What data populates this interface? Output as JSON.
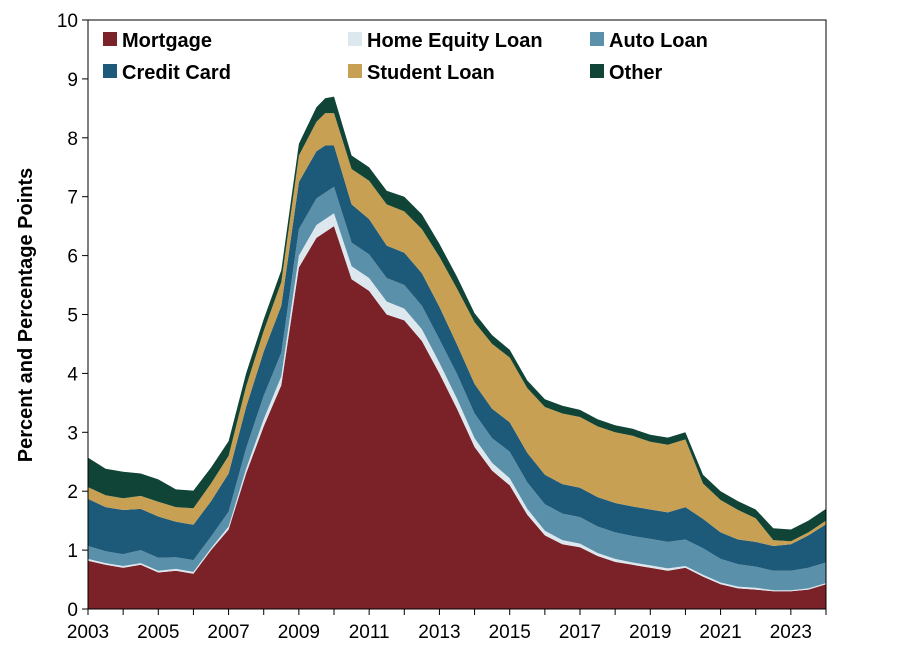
{
  "chart_data": {
    "type": "area",
    "stacked": true,
    "title": "",
    "xlabel": "",
    "ylabel": "Percent and Percentage Points",
    "xlim": [
      2003,
      2024
    ],
    "ylim": [
      0,
      10
    ],
    "x_ticks": [
      "2003",
      "2005",
      "2007",
      "2009",
      "2011",
      "2013",
      "2015",
      "2017",
      "2019",
      "2021",
      "2023"
    ],
    "y_ticks": [
      "0",
      "1",
      "2",
      "3",
      "4",
      "5",
      "6",
      "7",
      "8",
      "9",
      "10"
    ],
    "grid": false,
    "legend_position": "top",
    "x": [
      2003.0,
      2003.5,
      2004.0,
      2004.5,
      2005.0,
      2005.5,
      2006.0,
      2006.5,
      2007.0,
      2007.5,
      2008.0,
      2008.5,
      2009.0,
      2009.5,
      2009.75,
      2010.0,
      2010.5,
      2011.0,
      2011.5,
      2012.0,
      2012.5,
      2013.0,
      2013.5,
      2014.0,
      2014.5,
      2015.0,
      2015.5,
      2016.0,
      2016.5,
      2017.0,
      2017.5,
      2018.0,
      2018.5,
      2019.0,
      2019.5,
      2020.0,
      2020.5,
      2021.0,
      2021.5,
      2022.0,
      2022.5,
      2023.0,
      2023.5,
      2024.0
    ],
    "series": [
      {
        "name": "Mortgage",
        "color": "#7b2229",
        "values": [
          0.82,
          0.75,
          0.7,
          0.75,
          0.62,
          0.65,
          0.6,
          1.0,
          1.35,
          2.3,
          3.1,
          3.8,
          5.8,
          6.3,
          6.4,
          6.5,
          5.6,
          5.4,
          5.0,
          4.9,
          4.55,
          4.0,
          3.4,
          2.75,
          2.35,
          2.1,
          1.6,
          1.25,
          1.1,
          1.05,
          0.9,
          0.8,
          0.75,
          0.7,
          0.65,
          0.7,
          0.55,
          0.42,
          0.35,
          0.33,
          0.3,
          0.3,
          0.33,
          0.42
        ]
      },
      {
        "name": "Home Equity Loan",
        "color": "#dde8ee",
        "values": [
          0.03,
          0.03,
          0.03,
          0.03,
          0.03,
          0.03,
          0.03,
          0.03,
          0.05,
          0.08,
          0.12,
          0.15,
          0.2,
          0.22,
          0.22,
          0.22,
          0.22,
          0.22,
          0.22,
          0.2,
          0.2,
          0.18,
          0.17,
          0.15,
          0.13,
          0.12,
          0.1,
          0.08,
          0.07,
          0.06,
          0.05,
          0.05,
          0.04,
          0.04,
          0.04,
          0.03,
          0.03,
          0.03,
          0.03,
          0.03,
          0.02,
          0.02,
          0.02,
          0.02
        ]
      },
      {
        "name": "Auto Loan",
        "color": "#5a90aa",
        "values": [
          0.22,
          0.2,
          0.2,
          0.22,
          0.22,
          0.2,
          0.2,
          0.2,
          0.25,
          0.35,
          0.4,
          0.4,
          0.45,
          0.45,
          0.45,
          0.45,
          0.4,
          0.4,
          0.4,
          0.4,
          0.4,
          0.4,
          0.42,
          0.42,
          0.42,
          0.45,
          0.45,
          0.45,
          0.45,
          0.45,
          0.45,
          0.45,
          0.45,
          0.45,
          0.45,
          0.45,
          0.45,
          0.4,
          0.38,
          0.36,
          0.33,
          0.33,
          0.35,
          0.35
        ]
      },
      {
        "name": "Credit Card",
        "color": "#1d5a7a",
        "values": [
          0.8,
          0.75,
          0.75,
          0.7,
          0.7,
          0.6,
          0.6,
          0.6,
          0.65,
          0.7,
          0.75,
          0.8,
          0.8,
          0.8,
          0.8,
          0.7,
          0.65,
          0.6,
          0.55,
          0.55,
          0.55,
          0.55,
          0.5,
          0.5,
          0.5,
          0.5,
          0.5,
          0.5,
          0.5,
          0.5,
          0.5,
          0.5,
          0.5,
          0.5,
          0.5,
          0.55,
          0.5,
          0.45,
          0.42,
          0.42,
          0.42,
          0.45,
          0.55,
          0.65
        ]
      },
      {
        "name": "Student Loan",
        "color": "#c8a054",
        "values": [
          0.2,
          0.2,
          0.2,
          0.22,
          0.25,
          0.25,
          0.28,
          0.3,
          0.3,
          0.35,
          0.35,
          0.4,
          0.45,
          0.5,
          0.55,
          0.55,
          0.6,
          0.65,
          0.7,
          0.7,
          0.75,
          0.85,
          0.95,
          1.05,
          1.1,
          1.1,
          1.1,
          1.15,
          1.2,
          1.2,
          1.2,
          1.2,
          1.2,
          1.15,
          1.15,
          1.15,
          0.6,
          0.55,
          0.5,
          0.4,
          0.1,
          0.05,
          0.05,
          0.06
        ]
      },
      {
        "name": "Other",
        "color": "#0f4437",
        "values": [
          0.5,
          0.45,
          0.45,
          0.38,
          0.38,
          0.3,
          0.3,
          0.27,
          0.25,
          0.22,
          0.2,
          0.2,
          0.2,
          0.25,
          0.25,
          0.28,
          0.23,
          0.23,
          0.23,
          0.25,
          0.25,
          0.22,
          0.2,
          0.15,
          0.15,
          0.13,
          0.13,
          0.13,
          0.13,
          0.12,
          0.12,
          0.12,
          0.12,
          0.12,
          0.12,
          0.12,
          0.15,
          0.15,
          0.15,
          0.15,
          0.2,
          0.2,
          0.2,
          0.2
        ]
      }
    ]
  }
}
